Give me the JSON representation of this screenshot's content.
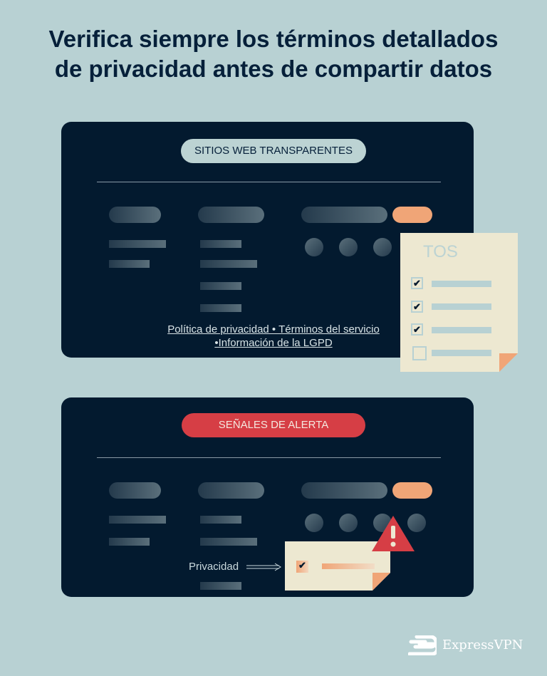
{
  "title_line1": "Verifica siempre los términos detallados",
  "title_line2": "de privacidad antes de compartir datos",
  "card1": {
    "label": "SITIOS WEB TRANSPARENTES",
    "links_line1": "Política de privacidad • Términos del servicio",
    "links_line2": "•Información de la LGPD",
    "doc_title": "TOS",
    "checks": [
      true,
      true,
      true,
      false
    ]
  },
  "card2": {
    "label": "SEÑALES DE ALERTA",
    "field_label": "Privacidad",
    "checked": true
  },
  "brand": "ExpressVPN",
  "colors": {
    "background": "#b8d1d3",
    "card": "#031a2f",
    "accent_orange": "#f0a577",
    "alert_red": "#d63e45",
    "paper": "#ede8d1"
  }
}
